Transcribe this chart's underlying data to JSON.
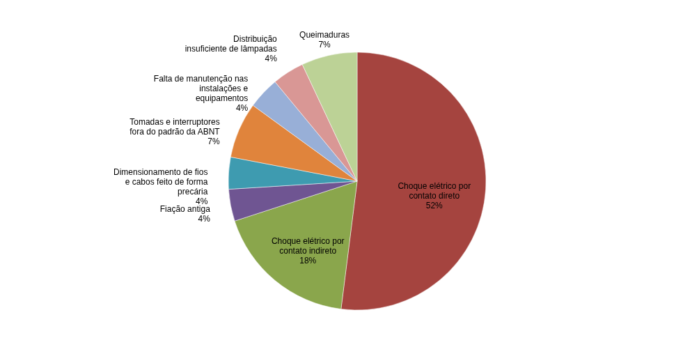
{
  "chart_data": {
    "type": "pie",
    "categories": [
      "Choque elétrico por contato direto",
      "Choque elétrico por contato indireto",
      "Fiação antiga",
      "Dimensionamento de fios e cabos feito de forma precária",
      "Tomadas e interruptores fora do padrão da ABNT",
      "Falta de manutenção nas instalações e equipamentos",
      "Distribuição insuficiente de lâmpadas",
      "Queimaduras"
    ],
    "values": [
      52,
      18,
      4,
      4,
      7,
      4,
      4,
      7
    ],
    "value_labels": [
      "52%",
      "18%",
      "4%",
      "4%",
      "7%",
      "4%",
      "4%",
      "7%"
    ],
    "colors": [
      "#a5443f",
      "#8aa64c",
      "#6f5592",
      "#3e9bb0",
      "#e0843c",
      "#98afd7",
      "#d99795",
      "#bcd296"
    ]
  }
}
